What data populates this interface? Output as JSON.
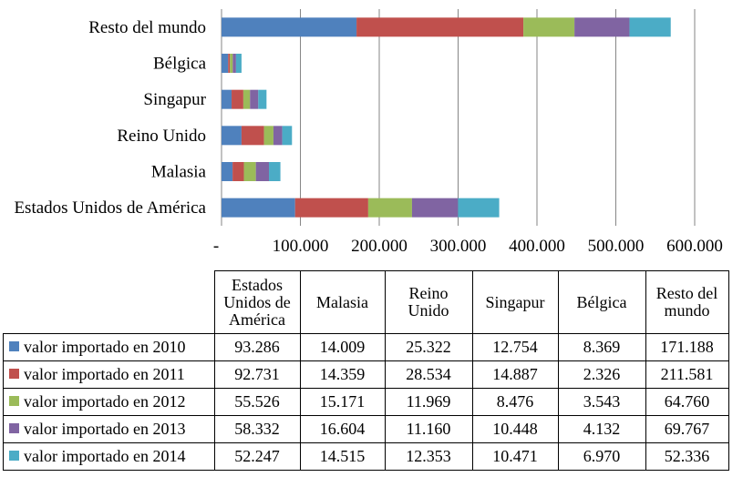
{
  "chart_data": {
    "type": "bar",
    "orientation": "horizontal",
    "stacked": true,
    "categories": [
      "Estados Unidos de América",
      "Malasia",
      "Reino Unido",
      "Singapur",
      "Bélgica",
      "Resto del mundo"
    ],
    "column_headers": [
      "Estados\nUnidos de\nAmérica",
      "Malasia",
      "Reino\nUnido",
      "Singapur",
      "Bélgica",
      "Resto del\nmundo"
    ],
    "series": [
      {
        "name": "valor importado en 2010",
        "color": "#4f81bd",
        "values": [
          93286,
          14009,
          25322,
          12754,
          8369,
          171188
        ],
        "display": [
          "93.286",
          "14.009",
          "25.322",
          "12.754",
          "8.369",
          "171.188"
        ]
      },
      {
        "name": "valor importado en 2011",
        "color": "#c0504d",
        "values": [
          92731,
          14359,
          28534,
          14887,
          2326,
          211581
        ],
        "display": [
          "92.731",
          "14.359",
          "28.534",
          "14.887",
          "2.326",
          "211.581"
        ]
      },
      {
        "name": "valor importado en 2012",
        "color": "#9bbb59",
        "values": [
          55526,
          15171,
          11969,
          8476,
          3543,
          64760
        ],
        "display": [
          "55.526",
          "15.171",
          "11.969",
          "8.476",
          "3.543",
          "64.760"
        ]
      },
      {
        "name": "valor importado en 2013",
        "color": "#8064a2",
        "values": [
          58332,
          16604,
          11160,
          10448,
          4132,
          69767
        ],
        "display": [
          "58.332",
          "16.604",
          "11.160",
          "10.448",
          "4.132",
          "69.767"
        ]
      },
      {
        "name": "valor importado en 2014",
        "color": "#4bacc6",
        "values": [
          52247,
          14515,
          12353,
          10471,
          6970,
          52336
        ],
        "display": [
          "52.247",
          "14.515",
          "12.353",
          "10.471",
          "6.970",
          "52.336"
        ]
      }
    ],
    "xlim": [
      0,
      600000
    ],
    "x_ticks": [
      0,
      100000,
      200000,
      300000,
      400000,
      500000,
      600000
    ],
    "x_tick_labels": [
      "-",
      "100.000",
      "200.000",
      "300.000",
      "400.000",
      "500.000",
      "600.000"
    ],
    "grid": true,
    "legend": "data-table-below"
  }
}
